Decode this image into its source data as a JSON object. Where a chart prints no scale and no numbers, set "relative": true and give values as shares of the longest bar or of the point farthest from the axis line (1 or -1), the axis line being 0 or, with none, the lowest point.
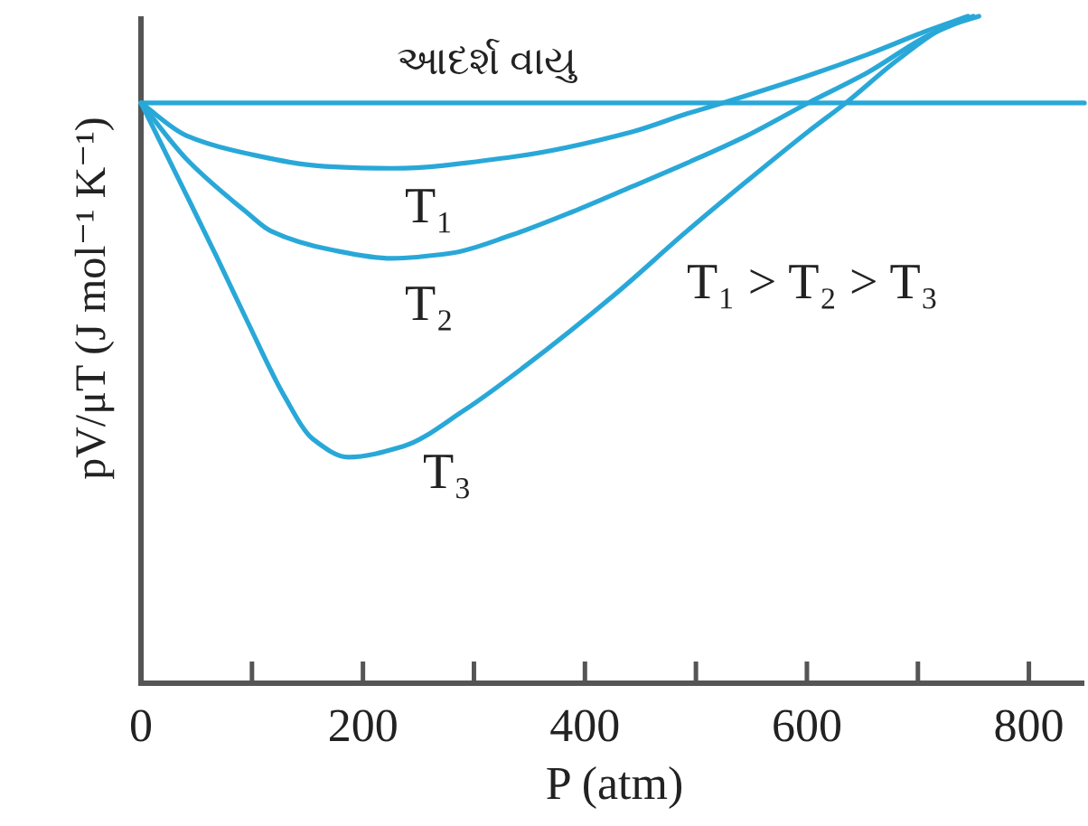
{
  "chart_data": {
    "type": "line",
    "xlabel": "P (atm)",
    "ylabel": "pV/μT (J mol⁻¹ K⁻¹)",
    "relative": true,
    "xlim": [
      0,
      850
    ],
    "xticks": [
      0,
      {
        "value": 100,
        "label": null
      },
      200,
      {
        "value": 300,
        "label": null
      },
      400,
      {
        "value": 500,
        "label": null
      },
      600,
      {
        "value": 700,
        "label": null
      },
      800
    ],
    "series": [
      {
        "name": "આદર્શ વાયુ",
        "color": "#29a8d8",
        "x": [
          0,
          850
        ],
        "values": [
          0.87,
          0.87
        ]
      },
      {
        "name": "T₁",
        "color": "#29a8d8",
        "x": [
          0,
          41,
          96,
          166,
          226,
          334,
          443,
          492,
          524,
          601,
          655,
          708,
          745
        ],
        "values": [
          0.87,
          0.821,
          0.794,
          0.775,
          0.772,
          0.789,
          0.827,
          0.854,
          0.87,
          0.911,
          0.943,
          0.978,
          1.0
        ]
      },
      {
        "name": "T₂",
        "color": "#29a8d8",
        "x": [
          0,
          41,
          96,
          117,
          171,
          226,
          280,
          334,
          389,
          443,
          492,
          546,
          601,
          655,
          708,
          750
        ],
        "values": [
          0.87,
          0.786,
          0.705,
          0.678,
          0.65,
          0.637,
          0.645,
          0.672,
          0.707,
          0.745,
          0.78,
          0.821,
          0.87,
          0.916,
          0.97,
          1.0
        ]
      },
      {
        "name": "T₃",
        "color": "#29a8d8",
        "x": [
          0,
          41,
          68,
          96,
          129,
          155,
          187,
          236,
          291,
          345,
          427,
          492,
          546,
          601,
          635,
          682,
          725,
          755
        ],
        "values": [
          0.87,
          0.732,
          0.64,
          0.542,
          0.431,
          0.366,
          0.339,
          0.355,
          0.409,
          0.474,
          0.583,
          0.678,
          0.753,
          0.827,
          0.87,
          0.935,
          0.984,
          1.0
        ]
      }
    ],
    "annotations": [
      "T₁ > T₂ > T₃"
    ]
  }
}
